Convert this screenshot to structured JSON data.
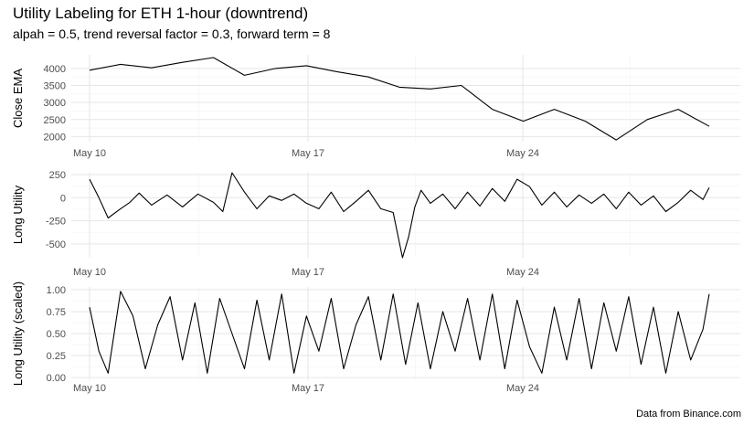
{
  "header": {
    "title": "Utility Labeling for ETH 1-hour (downtrend)",
    "subtitle": "alpah = 0.5, trend reversal factor = 0.3, forward term = 8",
    "caption": "Data from Binance.com"
  },
  "chart_data": [
    {
      "type": "line",
      "ylabel": "Close EMA",
      "xlabel": "",
      "x_ticks": [
        "May 10",
        "May 17",
        "May 24"
      ],
      "y_ticks": [
        2000,
        2500,
        3000,
        3500,
        4000
      ],
      "ylim": [
        1850,
        4400
      ],
      "series": [
        {
          "x": [
            0,
            1,
            2,
            3,
            4,
            5,
            6,
            7,
            8,
            9,
            10,
            11,
            12,
            13,
            14,
            15,
            16,
            17,
            18,
            19,
            20
          ],
          "values": [
            3950,
            4120,
            4020,
            4180,
            4320,
            3800,
            4000,
            4080,
            3900,
            3750,
            3450,
            3400,
            3500,
            2800,
            2450,
            2800,
            2450,
            1900,
            2500,
            2800,
            2300
          ]
        }
      ]
    },
    {
      "type": "line",
      "ylabel": "Long Utility",
      "xlabel": "",
      "x_ticks": [
        "May 10",
        "May 17",
        "May 24"
      ],
      "y_ticks": [
        -500,
        -250,
        0,
        250
      ],
      "ylim": [
        -650,
        280
      ],
      "series": [
        {
          "x": [
            0,
            0.3,
            0.6,
            1,
            1.3,
            1.6,
            2,
            2.5,
            3,
            3.5,
            4,
            4.3,
            4.6,
            5,
            5.4,
            5.8,
            6.2,
            6.6,
            7,
            7.4,
            7.8,
            8.2,
            8.6,
            9,
            9.4,
            9.8,
            10.1,
            10.3,
            10.5,
            10.7,
            11,
            11.4,
            11.8,
            12.2,
            12.6,
            13,
            13.4,
            13.8,
            14.2,
            14.6,
            15,
            15.4,
            15.8,
            16.2,
            16.6,
            17,
            17.4,
            17.8,
            18.2,
            18.6,
            19,
            19.4,
            19.8,
            20
          ],
          "values": [
            200,
            0,
            -220,
            -120,
            -50,
            50,
            -80,
            30,
            -100,
            40,
            -50,
            -150,
            270,
            60,
            -120,
            20,
            -30,
            40,
            -60,
            -120,
            60,
            -150,
            -40,
            80,
            -120,
            -160,
            -650,
            -420,
            -100,
            80,
            -60,
            40,
            -120,
            60,
            -90,
            100,
            -40,
            200,
            120,
            -80,
            60,
            -100,
            30,
            -60,
            40,
            -120,
            60,
            -80,
            20,
            -150,
            -50,
            80,
            -20,
            110
          ]
        }
      ]
    },
    {
      "type": "line",
      "ylabel": "Long Utility (scaled)",
      "xlabel": "",
      "x_ticks": [
        "May 10",
        "May 17",
        "May 24"
      ],
      "y_ticks": [
        0.0,
        0.25,
        0.5,
        0.75,
        1.0
      ],
      "ylim": [
        -0.03,
        1.03
      ],
      "series": [
        {
          "x": [
            0,
            0.3,
            0.6,
            1,
            1.4,
            1.8,
            2.2,
            2.6,
            3,
            3.4,
            3.8,
            4.2,
            4.6,
            5,
            5.4,
            5.8,
            6.2,
            6.6,
            7,
            7.4,
            7.8,
            8.2,
            8.6,
            9,
            9.4,
            9.8,
            10.2,
            10.6,
            11,
            11.4,
            11.8,
            12.2,
            12.6,
            13,
            13.4,
            13.8,
            14.2,
            14.6,
            15,
            15.4,
            15.8,
            16.2,
            16.6,
            17,
            17.4,
            17.8,
            18.2,
            18.6,
            19,
            19.4,
            19.8,
            20
          ],
          "values": [
            0.8,
            0.3,
            0.05,
            0.98,
            0.7,
            0.1,
            0.6,
            0.92,
            0.2,
            0.85,
            0.05,
            0.9,
            0.5,
            0.1,
            0.88,
            0.2,
            0.95,
            0.05,
            0.7,
            0.3,
            0.9,
            0.1,
            0.6,
            0.92,
            0.2,
            0.95,
            0.15,
            0.85,
            0.1,
            0.75,
            0.3,
            0.9,
            0.2,
            0.95,
            0.1,
            0.88,
            0.35,
            0.05,
            0.8,
            0.2,
            0.9,
            0.1,
            0.85,
            0.3,
            0.92,
            0.15,
            0.8,
            0.05,
            0.75,
            0.2,
            0.55,
            0.95
          ]
        }
      ]
    }
  ]
}
